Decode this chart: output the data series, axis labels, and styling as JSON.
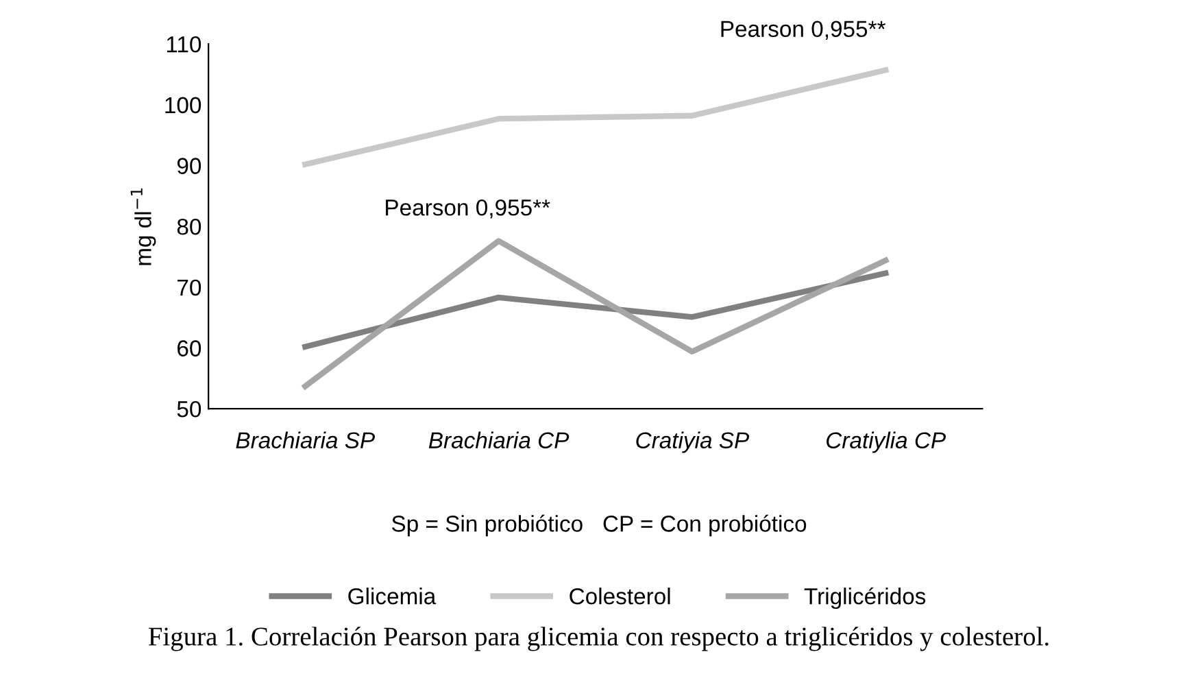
{
  "chart_data": {
    "type": "line",
    "ylabel": "mg dl$^{−1}$",
    "categories": [
      "Brachiaria SP",
      "Brachiaria CP",
      "Cratiyia SP",
      "Cratiylia CP"
    ],
    "series": [
      {
        "name": "Glicemia",
        "color": "#808080",
        "values": [
          60.2,
          68.3,
          65.1,
          72.3
        ]
      },
      {
        "name": "Colesterol",
        "color": "#c8c8c8",
        "values": [
          90.2,
          97.7,
          98.2,
          105.7
        ]
      },
      {
        "name": "Triglicéridos",
        "color": "#a6a6a6",
        "values": [
          53.7,
          77.6,
          59.4,
          74.4
        ]
      }
    ],
    "ylim": [
      50,
      110
    ],
    "yticks": [
      50,
      60,
      70,
      80,
      90,
      100,
      110
    ],
    "grid": false,
    "legend": "bottom",
    "marker": "none",
    "line_style": "solid",
    "annotations": [
      "Pearson 0,955**",
      "Pearson 0,955**",
      "Sp = Sin probiótico   CP = Con probiótico",
      "Figura 1. Correlación Pearson para glicemia con respecto a triglicéridos y colesterol."
    ]
  }
}
